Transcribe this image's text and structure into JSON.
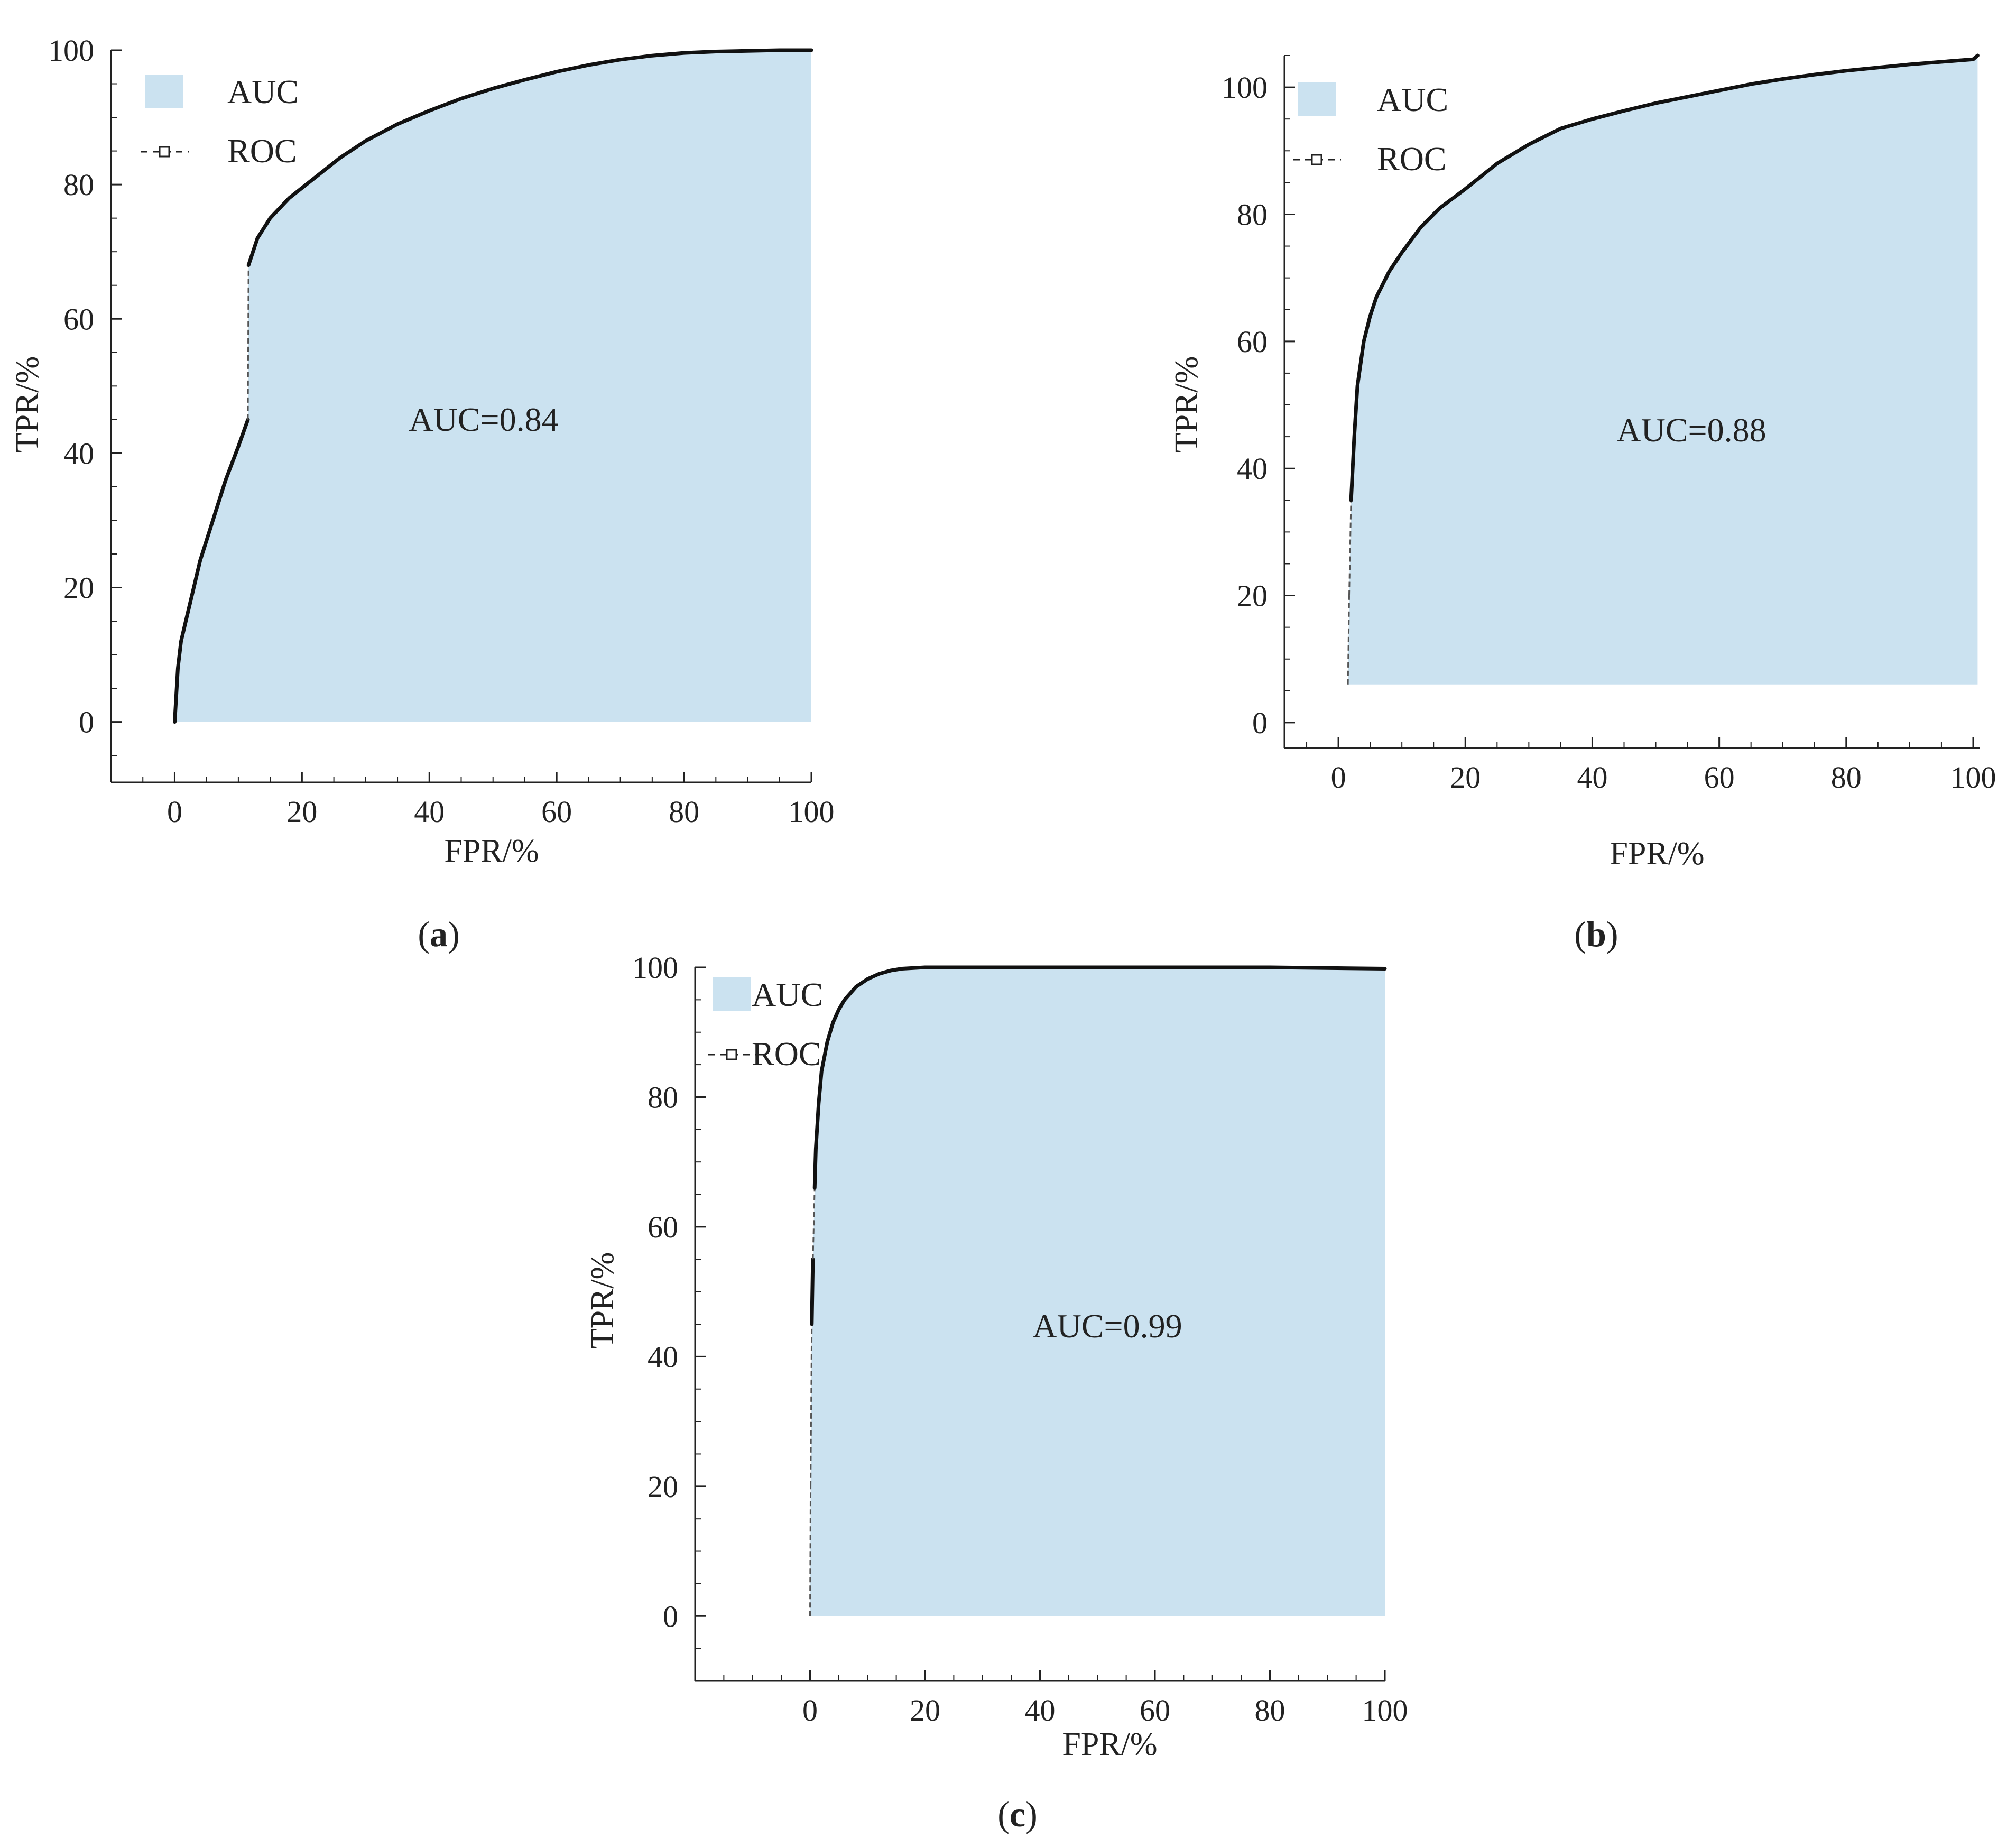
{
  "chart_data": [
    {
      "type": "area",
      "panel": "a",
      "caption_letter": "a",
      "annotation": "AUC=0.84",
      "xlabel": "FPR/%",
      "ylabel": "TPR/%",
      "xlim": [
        -10,
        100
      ],
      "ylim": [
        -9,
        100
      ],
      "xticks": [
        0,
        20,
        40,
        60,
        80,
        100
      ],
      "yticks": [
        0,
        20,
        40,
        60,
        80,
        100
      ],
      "legend": {
        "placement": "top-left",
        "entries": [
          "AUC",
          "ROC"
        ]
      },
      "series": [
        {
          "name": "ROC",
          "x": [
            0,
            0.5,
            1,
            2,
            3,
            4,
            6,
            8,
            10,
            11.5,
            11.6,
            13,
            15,
            18,
            22,
            26,
            30,
            35,
            40,
            45,
            50,
            55,
            60,
            65,
            70,
            75,
            80,
            85,
            90,
            95,
            100
          ],
          "y": [
            0,
            8,
            12,
            16,
            20,
            24,
            30,
            36,
            41,
            45,
            68,
            72,
            75,
            78,
            81,
            84,
            86.5,
            89,
            91,
            92.8,
            94.3,
            95.6,
            96.8,
            97.8,
            98.6,
            99.2,
            99.6,
            99.8,
            99.9,
            100,
            100
          ]
        }
      ]
    },
    {
      "type": "area",
      "panel": "b",
      "caption_letter": "b",
      "annotation": "AUC=0.88",
      "xlabel": "FPR/%",
      "ylabel": "TPR/%",
      "xlim": [
        -8.5,
        101
      ],
      "ylim": [
        -4,
        105
      ],
      "xticks": [
        0,
        20,
        40,
        60,
        80,
        100
      ],
      "yticks": [
        0,
        20,
        40,
        60,
        80,
        100
      ],
      "legend": {
        "placement": "top-left",
        "entries": [
          "AUC",
          "ROC"
        ]
      },
      "series": [
        {
          "name": "ROC",
          "x": [
            1.5,
            1.7,
            2,
            2.5,
            3,
            4,
            5,
            6,
            8,
            10,
            13,
            16,
            20,
            25,
            30,
            35,
            40,
            45,
            50,
            55,
            60,
            65,
            70,
            75,
            80,
            85,
            90,
            95,
            100,
            100.7
          ],
          "y": [
            6,
            20,
            35,
            45,
            53,
            60,
            64,
            67,
            71,
            74,
            78,
            81,
            84,
            88,
            91,
            93.5,
            95,
            96.3,
            97.5,
            98.5,
            99.5,
            100.5,
            101.3,
            102,
            102.6,
            103.1,
            103.6,
            104,
            104.4,
            105
          ]
        }
      ]
    },
    {
      "type": "area",
      "panel": "c",
      "caption_letter": "c",
      "annotation": "AUC=0.99",
      "xlabel": "FPR/%",
      "ylabel": "TPR/%",
      "xlim": [
        -20,
        100
      ],
      "ylim": [
        -10,
        100
      ],
      "xticks": [
        0,
        20,
        40,
        60,
        80,
        100
      ],
      "yticks": [
        0,
        20,
        40,
        60,
        80,
        100
      ],
      "legend": {
        "placement": "top-left",
        "entries": [
          "AUC",
          "ROC"
        ]
      },
      "series": [
        {
          "name": "ROC",
          "x": [
            0,
            0.1,
            0.3,
            0.5,
            0.8,
            1,
            1.5,
            2,
            3,
            4,
            5,
            6,
            8,
            10,
            12,
            14,
            16,
            20,
            30,
            40,
            60,
            80,
            100
          ],
          "y": [
            0,
            20,
            45,
            55,
            66,
            72,
            79,
            84,
            88.5,
            91.5,
            93.5,
            95,
            97,
            98.2,
            99,
            99.5,
            99.8,
            100,
            100,
            100,
            100,
            100,
            99.8
          ]
        }
      ]
    }
  ],
  "colors": {
    "auc_fill": "#cbe2f0",
    "roc_line": "#111111",
    "axis": "#222222"
  }
}
